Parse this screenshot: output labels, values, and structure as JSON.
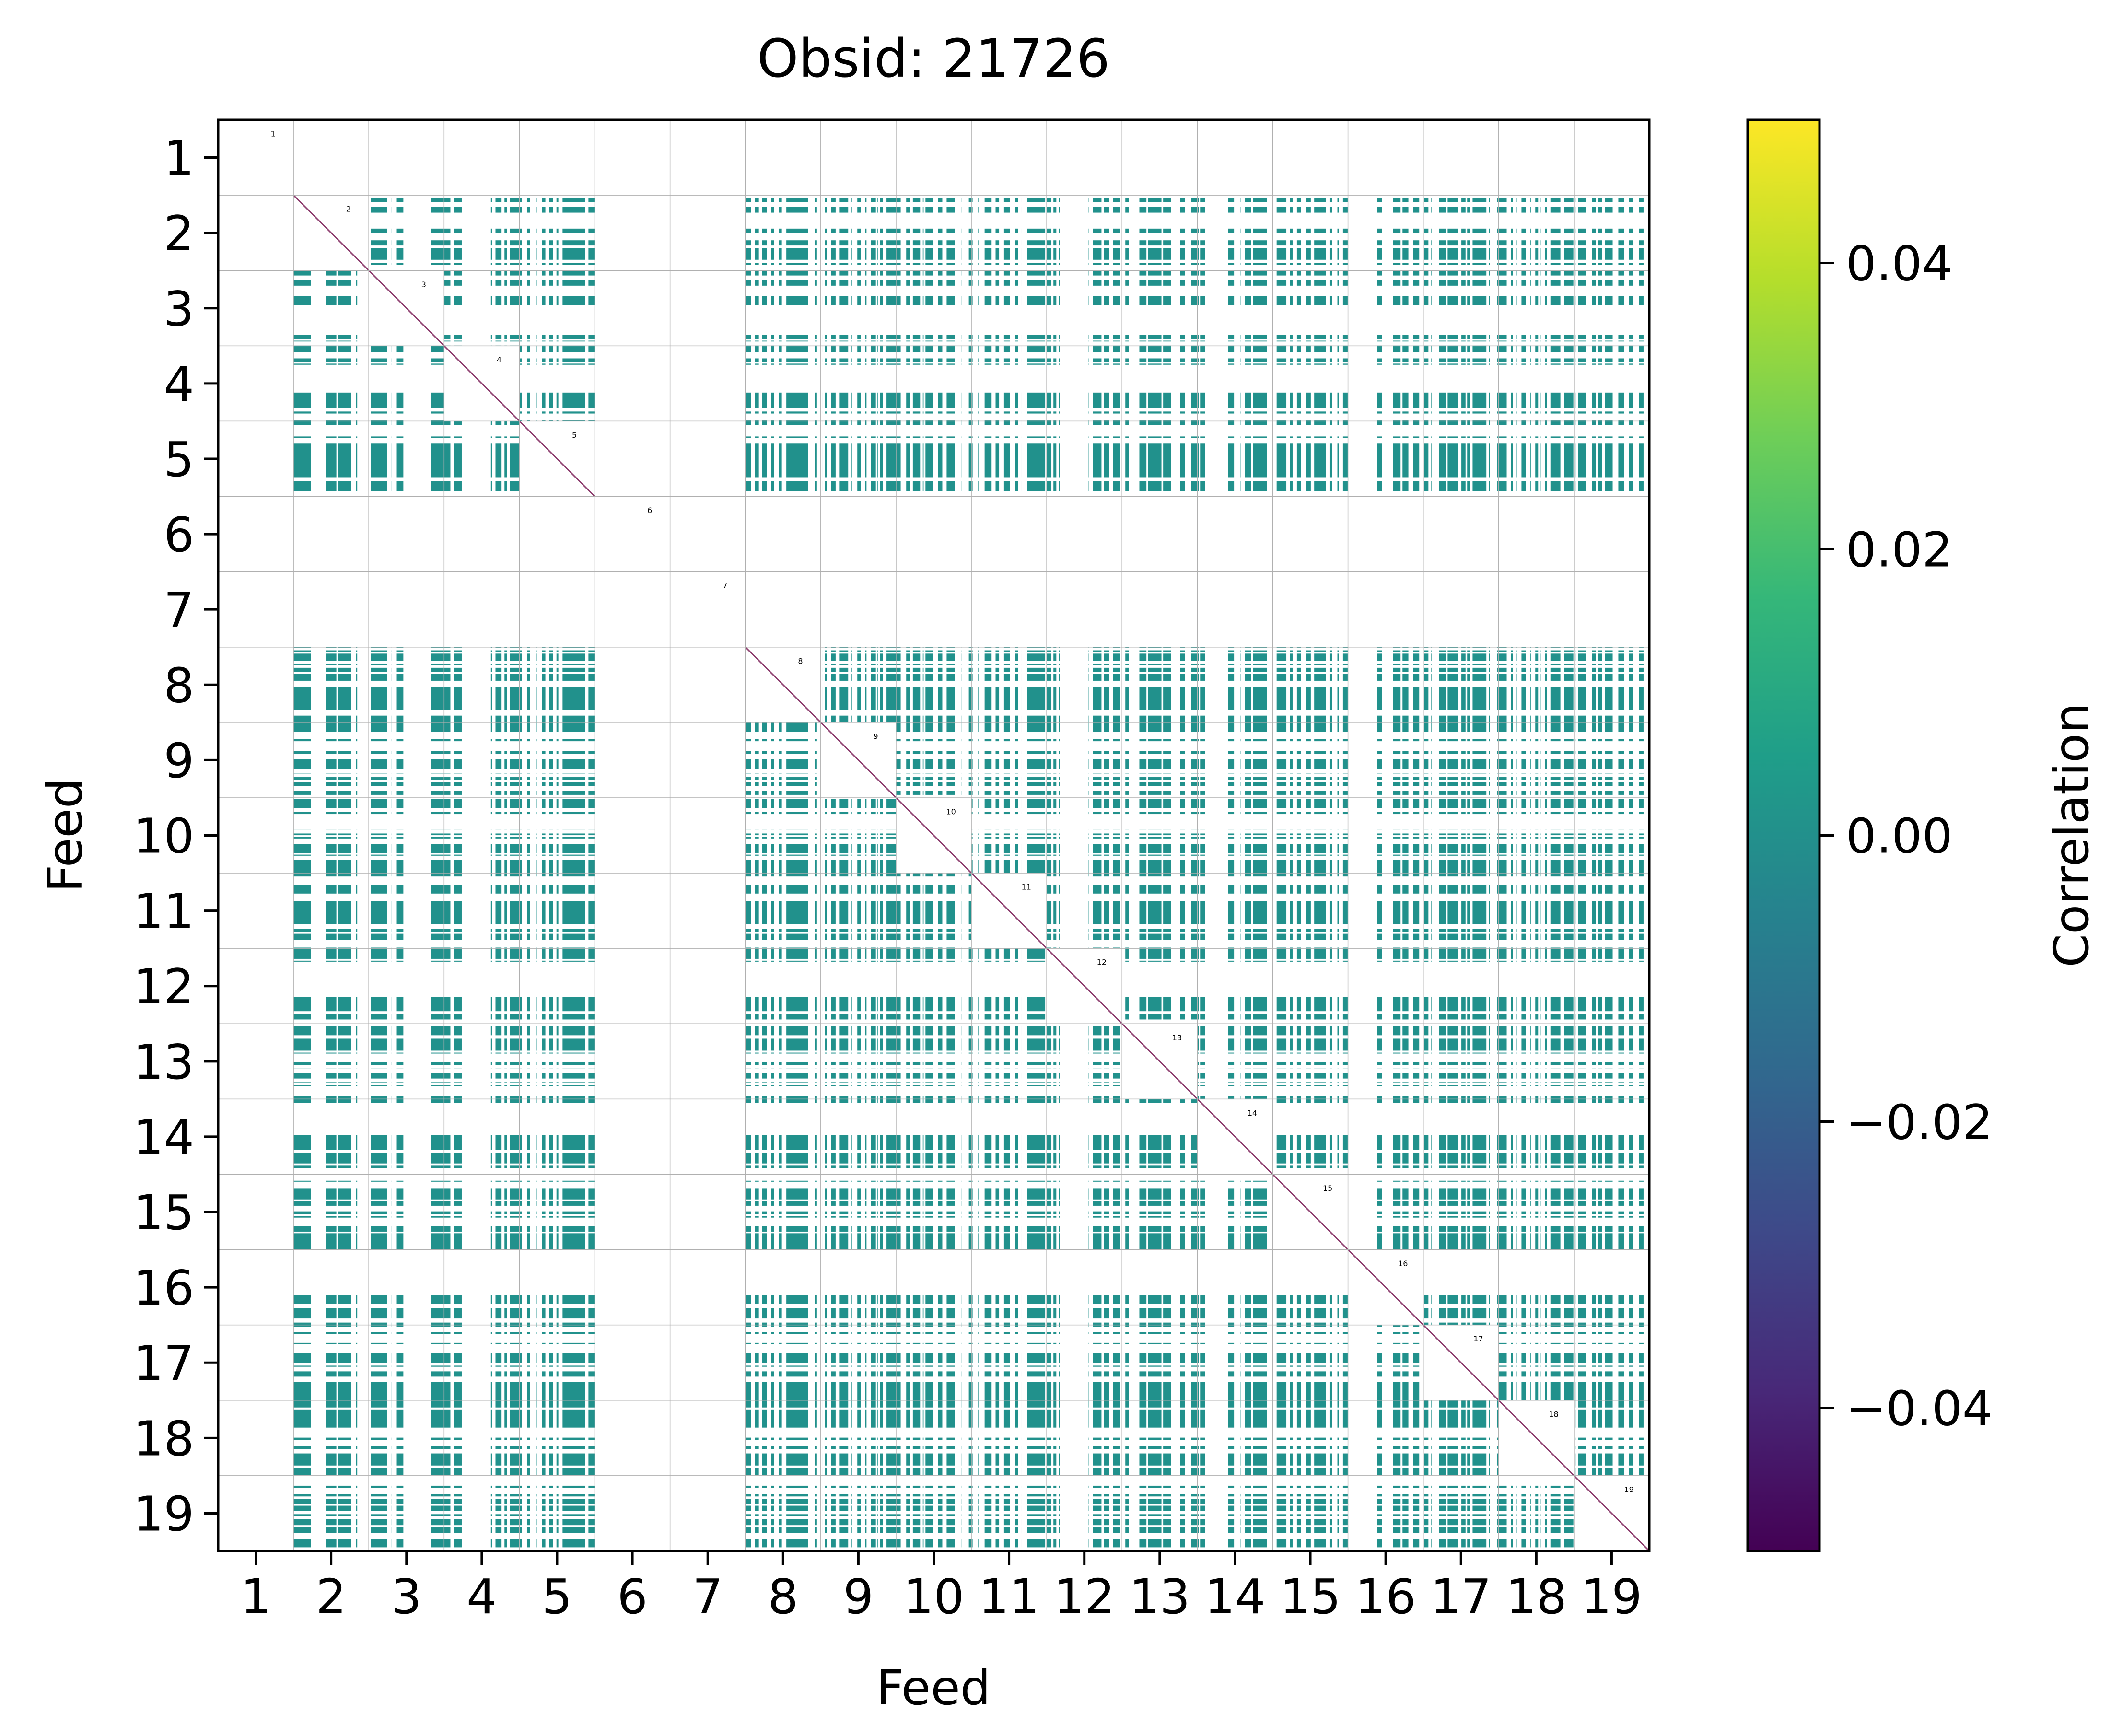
{
  "chart_data": {
    "type": "heatmap",
    "title": "Obsid: 21726",
    "xlabel": "Feed",
    "ylabel": "Feed",
    "x_ticks": [
      "1",
      "2",
      "3",
      "4",
      "5",
      "6",
      "7",
      "8",
      "9",
      "10",
      "11",
      "12",
      "13",
      "14",
      "15",
      "16",
      "17",
      "18",
      "19"
    ],
    "y_ticks": [
      "1",
      "2",
      "3",
      "4",
      "5",
      "6",
      "7",
      "8",
      "9",
      "10",
      "11",
      "12",
      "13",
      "14",
      "15",
      "16",
      "17",
      "18",
      "19"
    ],
    "feeds": 19,
    "colormap": "viridis",
    "colormap_stops": [
      "#440154",
      "#482878",
      "#3e4989",
      "#31688e",
      "#26828e",
      "#1f9e89",
      "#35b779",
      "#6ece58",
      "#b5de2b",
      "#fde725"
    ],
    "off_diagonal_color": "#21918c",
    "diagonal_color": "#8e3f6f",
    "colorbar": {
      "label": "Correlation",
      "range": [
        -0.05,
        0.05
      ],
      "ticks": [
        -0.04,
        -0.02,
        0.0,
        0.02,
        0.04
      ],
      "tick_labels": [
        "−0.04",
        "−0.02",
        "0.00",
        "0.02",
        "0.04"
      ]
    },
    "active_feeds": [
      2,
      3,
      4,
      5,
      8,
      9,
      10,
      11,
      12,
      13,
      14,
      15,
      16,
      17,
      18,
      19
    ],
    "inactive_feeds": [
      1,
      6,
      7
    ],
    "approx_value_off_diagonal": 0.0,
    "diagonal_block_labels": [
      "1",
      "2",
      "3",
      "4",
      "5",
      "6",
      "7",
      "8",
      "9",
      "10",
      "11",
      "12",
      "13",
      "14",
      "15",
      "16",
      "17",
      "18",
      "19"
    ]
  }
}
